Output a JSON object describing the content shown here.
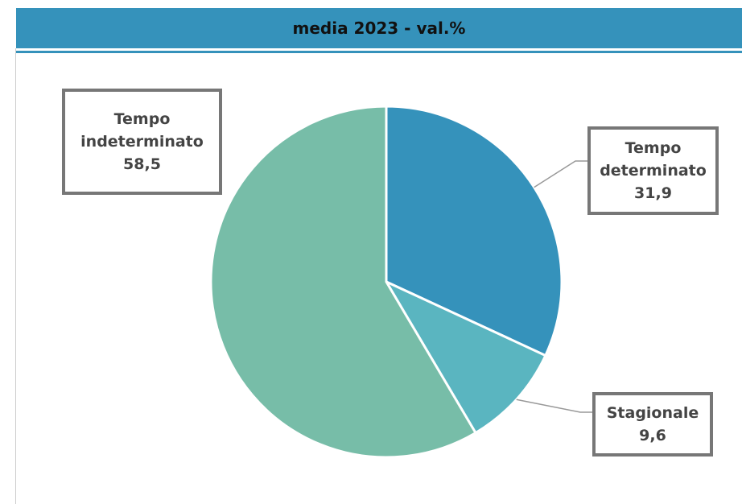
{
  "chart_data": {
    "type": "pie",
    "title": "media 2023 - val.%",
    "categories": [
      "Tempo determinato",
      "Stagionale",
      "Tempo indeterminato"
    ],
    "values": [
      31.9,
      9.6,
      58.5
    ],
    "value_labels": [
      "31,9",
      "9,6",
      "58,5"
    ],
    "colors": [
      "#3592bb",
      "#5ab5c0",
      "#77bda8"
    ]
  }
}
